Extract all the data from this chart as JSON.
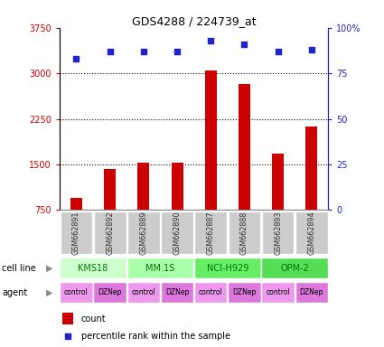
{
  "title": "GDS4288 / 224739_at",
  "samples": [
    "GSM662891",
    "GSM662892",
    "GSM662889",
    "GSM662890",
    "GSM662887",
    "GSM662888",
    "GSM662893",
    "GSM662894"
  ],
  "bar_values": [
    950,
    1430,
    1530,
    1530,
    3040,
    2820,
    1680,
    2130
  ],
  "pct_values": [
    83,
    87,
    87,
    87,
    93,
    91,
    87,
    88
  ],
  "ylim_left": [
    750,
    3750
  ],
  "ylim_right": [
    0,
    100
  ],
  "yticks_left": [
    750,
    1500,
    2250,
    3000,
    3750
  ],
  "yticks_right": [
    0,
    25,
    50,
    75,
    100
  ],
  "bar_color": "#cc0000",
  "dot_color": "#2222cc",
  "cell_line_data": [
    {
      "label": "KMS18",
      "start": 0,
      "end": 2,
      "color": "#ccffcc"
    },
    {
      "label": "MM.1S",
      "start": 2,
      "end": 4,
      "color": "#aaffaa"
    },
    {
      "label": "NCI-H929",
      "start": 4,
      "end": 6,
      "color": "#66ee66"
    },
    {
      "label": "OPM-2",
      "start": 6,
      "end": 8,
      "color": "#55dd55"
    }
  ],
  "agents": [
    "control",
    "DZNep",
    "control",
    "DZNep",
    "control",
    "DZNep",
    "control",
    "DZNep"
  ],
  "agent_colors": [
    "#ee99ee",
    "#dd77dd",
    "#ee99ee",
    "#dd77dd",
    "#ee99ee",
    "#dd77dd",
    "#ee99ee",
    "#dd77dd"
  ],
  "legend_count_label": "count",
  "legend_pct_label": "percentile rank within the sample",
  "left_tick_color": "#cc0000",
  "right_tick_color": "#2222cc",
  "sample_box_color": "#cccccc",
  "bar_width": 0.35
}
